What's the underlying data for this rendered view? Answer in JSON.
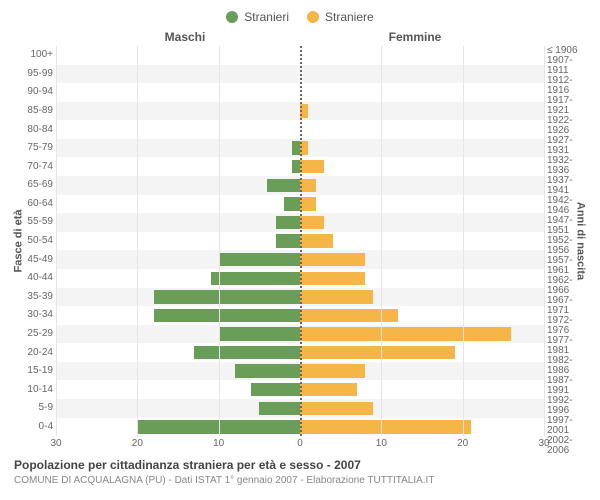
{
  "chart": {
    "type": "population-pyramid",
    "legend": [
      {
        "label": "Stranieri",
        "color": "#6a9e58"
      },
      {
        "label": "Straniere",
        "color": "#f5b547"
      }
    ],
    "header_left": "Maschi",
    "header_right": "Femmine",
    "y_left_title": "Fasce di età",
    "y_right_title": "Anni di nascita",
    "x_max": 30,
    "x_ticks_left": [
      30,
      20,
      10,
      0
    ],
    "x_ticks_right": [
      0,
      10,
      20,
      30
    ],
    "grid_color": "#e5e5e5",
    "row_alt_bg": "#f4f4f4",
    "center_line_color": "#666666",
    "male_color": "#6a9e58",
    "female_color": "#f5b547",
    "background_color": "#ffffff",
    "label_fontsize": 10,
    "rows": [
      {
        "age": "100+",
        "birth": "≤ 1906",
        "m": 0,
        "f": 0
      },
      {
        "age": "95-99",
        "birth": "1907-1911",
        "m": 0,
        "f": 0
      },
      {
        "age": "90-94",
        "birth": "1912-1916",
        "m": 0,
        "f": 0
      },
      {
        "age": "85-89",
        "birth": "1917-1921",
        "m": 0,
        "f": 1
      },
      {
        "age": "80-84",
        "birth": "1922-1926",
        "m": 0,
        "f": 0
      },
      {
        "age": "75-79",
        "birth": "1927-1931",
        "m": 1,
        "f": 1
      },
      {
        "age": "70-74",
        "birth": "1932-1936",
        "m": 1,
        "f": 3
      },
      {
        "age": "65-69",
        "birth": "1937-1941",
        "m": 4,
        "f": 2
      },
      {
        "age": "60-64",
        "birth": "1942-1946",
        "m": 2,
        "f": 2
      },
      {
        "age": "55-59",
        "birth": "1947-1951",
        "m": 3,
        "f": 3
      },
      {
        "age": "50-54",
        "birth": "1952-1956",
        "m": 3,
        "f": 4
      },
      {
        "age": "45-49",
        "birth": "1957-1961",
        "m": 10,
        "f": 8
      },
      {
        "age": "40-44",
        "birth": "1962-1966",
        "m": 11,
        "f": 8
      },
      {
        "age": "35-39",
        "birth": "1967-1971",
        "m": 18,
        "f": 9
      },
      {
        "age": "30-34",
        "birth": "1972-1976",
        "m": 18,
        "f": 12
      },
      {
        "age": "25-29",
        "birth": "1977-1981",
        "m": 10,
        "f": 26
      },
      {
        "age": "20-24",
        "birth": "1982-1986",
        "m": 13,
        "f": 19
      },
      {
        "age": "15-19",
        "birth": "1987-1991",
        "m": 8,
        "f": 8
      },
      {
        "age": "10-14",
        "birth": "1992-1996",
        "m": 6,
        "f": 7
      },
      {
        "age": "5-9",
        "birth": "1997-2001",
        "m": 5,
        "f": 9
      },
      {
        "age": "0-4",
        "birth": "2002-2006",
        "m": 20,
        "f": 21
      }
    ]
  },
  "caption": {
    "title": "Popolazione per cittadinanza straniera per età e sesso - 2007",
    "subtitle": "COMUNE DI ACQUALAGNA (PU) - Dati ISTAT 1° gennaio 2007 - Elaborazione TUTTITALIA.IT"
  }
}
